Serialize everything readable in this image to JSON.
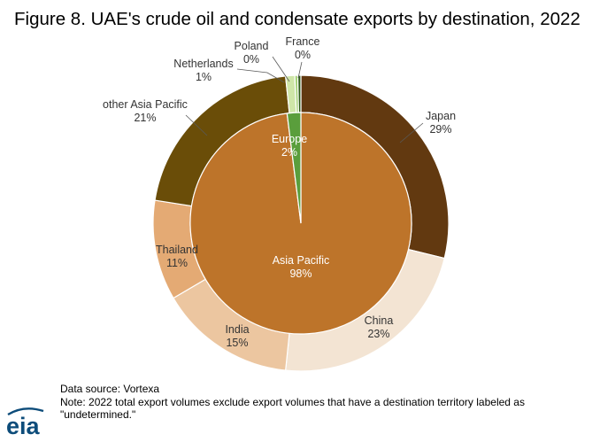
{
  "title": "Figure 8. UAE's crude oil and condensate exports by destination, 2022",
  "chart_data": {
    "type": "pie",
    "subtype": "nested-donut",
    "inner_ring": [
      {
        "label": "Asia Pacific",
        "value": 98,
        "value_label": "98%",
        "color": "#bd742a",
        "label_color": "#ffffff"
      },
      {
        "label": "Europe",
        "value": 2,
        "value_label": "2%",
        "color": "#5a9e3c",
        "label_color": "#ffffff"
      }
    ],
    "outer_ring": [
      {
        "label": "Japan",
        "value": 29,
        "value_label": "29%",
        "color": "#623910"
      },
      {
        "label": "China",
        "value": 23,
        "value_label": "23%",
        "color": "#f3e4d3"
      },
      {
        "label": "India",
        "value": 15,
        "value_label": "15%",
        "color": "#ecc6a0"
      },
      {
        "label": "Thailand",
        "value": 11,
        "value_label": "11%",
        "color": "#e4aa74"
      },
      {
        "label": "other Asia Pacific",
        "value": 21,
        "value_label": "21%",
        "color": "#6a4d08"
      },
      {
        "label": "Netherlands",
        "value": 1,
        "value_label": "1%",
        "color": "#cfe6a8"
      },
      {
        "label": "Poland",
        "value": 0,
        "value_label": "0%",
        "color": "#a6d27a"
      },
      {
        "label": "France",
        "value": 0,
        "value_label": "0%",
        "color": "#2f5d1a"
      }
    ],
    "legend": "none"
  },
  "footer": {
    "source": "Data source: Vortexa",
    "note_line1": "Note: 2022 total export volumes exclude export volumes that have a destination territory labeled as",
    "note_line2": "\"undetermined.\""
  },
  "logo": {
    "text": "eia",
    "color": "#0d4c7a"
  }
}
